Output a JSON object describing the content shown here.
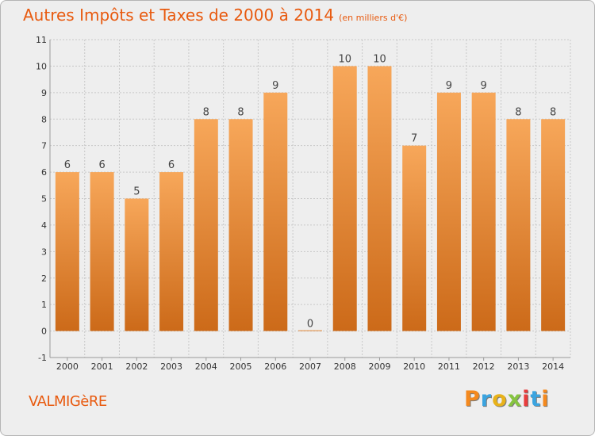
{
  "title": {
    "main": "Autres Impôts et Taxes de 2000 à 2014",
    "unit": "(en milliers d'€)"
  },
  "commune": "VALMIGèRE",
  "logo": {
    "text": "Proxiti",
    "letter_colors": [
      "#f4891e",
      "#3aa4e0",
      "#e8b21a",
      "#86c440",
      "#e83d3d",
      "#3aa4e0",
      "#f4891e"
    ]
  },
  "colors": {
    "bar_light": "#f7a75a",
    "bar_dark": "#cc6a19",
    "grid": "#c8c8c8",
    "axis_text": "#333333",
    "label_text": "#444444"
  },
  "chart_data": {
    "type": "bar",
    "title": "Autres Impôts et Taxes de 2000 à 2014",
    "subtitle": "(en milliers d'€)",
    "categories": [
      "2000",
      "2001",
      "2002",
      "2003",
      "2004",
      "2005",
      "2006",
      "2007",
      "2008",
      "2009",
      "2010",
      "2011",
      "2012",
      "2013",
      "2014"
    ],
    "values": [
      6,
      6,
      5,
      6,
      8,
      8,
      9,
      0,
      10,
      10,
      7,
      9,
      9,
      8,
      8
    ],
    "data_labels": [
      "6",
      "6",
      "5",
      "6",
      "8",
      "8",
      "9",
      "0",
      "10",
      "10",
      "7",
      "9",
      "9",
      "8",
      "8"
    ],
    "y_ticks": [
      "-1",
      "0",
      "1",
      "2",
      "3",
      "4",
      "5",
      "6",
      "7",
      "8",
      "9",
      "10",
      "11"
    ],
    "ylim": [
      -1,
      11
    ],
    "grid": true,
    "legend": "none"
  }
}
